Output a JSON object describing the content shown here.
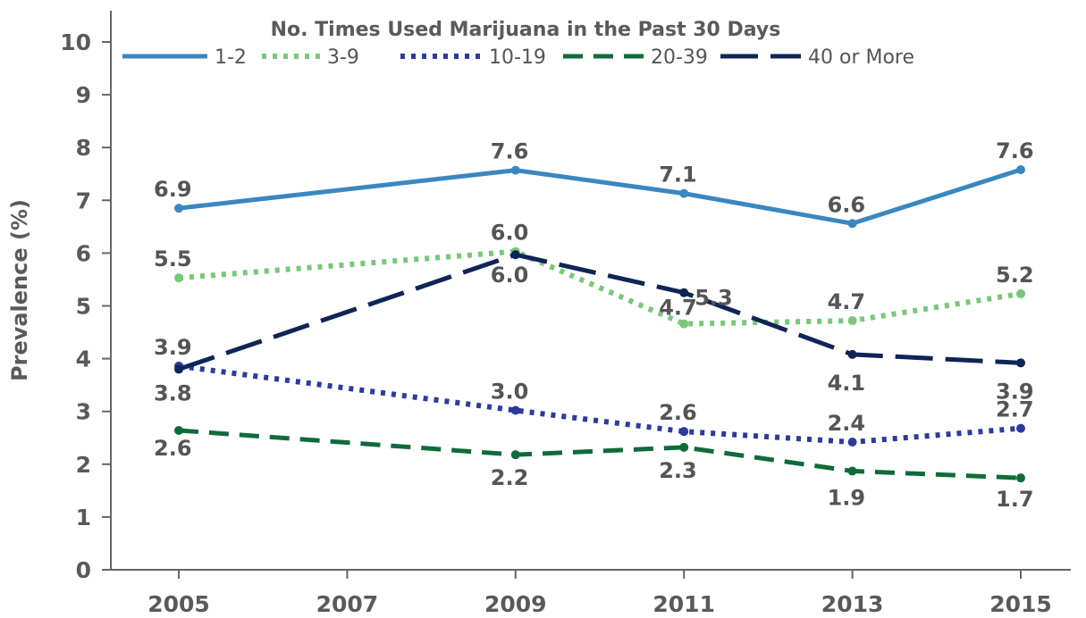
{
  "chart_data": {
    "type": "line",
    "ylabel": "Prevalence (%)",
    "ylim": [
      0,
      10
    ],
    "yticks": [
      "0",
      "1",
      "2",
      "3",
      "4",
      "5",
      "6",
      "7",
      "8",
      "9",
      "10"
    ],
    "xticks": [
      "2005",
      "2007",
      "2009",
      "2011",
      "2013",
      "2015"
    ],
    "x": [
      2005,
      2009,
      2011,
      2013,
      2015
    ],
    "legend_title": "No. Times Used Marijuana in the Past 30 Days",
    "legend_position": "top",
    "grid": false,
    "series": [
      {
        "name": "1-2",
        "color": "#3a87c0",
        "style": "solid",
        "values": [
          6.85,
          7.57,
          7.13,
          6.56,
          7.58
        ],
        "labels": [
          "6.9",
          "7.6",
          "7.1",
          "6.6",
          "7.6"
        ]
      },
      {
        "name": "3-9",
        "color": "#78c878",
        "style": "dotted",
        "values": [
          5.53,
          6.03,
          4.66,
          4.72,
          5.23
        ],
        "labels": [
          "5.5",
          "6.0",
          "4.7",
          "4.7",
          "5.2"
        ]
      },
      {
        "name": "10-19",
        "color": "#2e3a9e",
        "style": "dotted",
        "values": [
          3.86,
          3.02,
          2.62,
          2.42,
          2.68
        ],
        "labels": [
          "3.9",
          "3.0",
          "2.6",
          "2.4",
          "2.7"
        ]
      },
      {
        "name": "20-39",
        "color": "#0e6b3a",
        "style": "dashed",
        "values": [
          2.64,
          2.18,
          2.32,
          1.87,
          1.74
        ],
        "labels": [
          "2.6",
          "2.2",
          "2.3",
          "1.9",
          "1.7"
        ]
      },
      {
        "name": "40 or More",
        "color": "#0f2457",
        "style": "longdash",
        "values": [
          3.8,
          5.97,
          5.25,
          4.08,
          3.92
        ],
        "labels": [
          "3.8",
          "6.0",
          "5.3",
          "4.1",
          "3.9"
        ]
      }
    ]
  }
}
